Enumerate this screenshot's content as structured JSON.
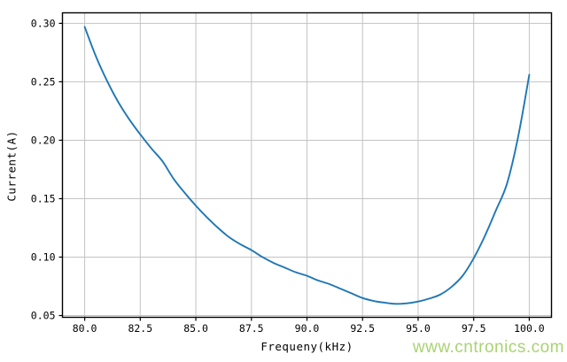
{
  "chart_data": {
    "type": "line",
    "title": "",
    "xlabel": "Frequeny(kHz)",
    "ylabel": "Current(A)",
    "x": [
      80,
      80.5,
      81,
      81.5,
      82,
      82.5,
      83,
      83.5,
      84,
      84.5,
      85,
      85.5,
      86,
      86.5,
      87,
      87.5,
      88,
      88.5,
      89,
      89.5,
      90,
      90.5,
      91,
      91.5,
      92,
      92.5,
      93,
      93.5,
      94,
      94.5,
      95,
      95.5,
      96,
      96.5,
      97,
      97.5,
      98,
      98.5,
      99,
      99.5,
      100
    ],
    "y": [
      0.297,
      0.272,
      0.251,
      0.233,
      0.218,
      0.205,
      0.193,
      0.182,
      0.167,
      0.155,
      0.144,
      0.134,
      0.125,
      0.117,
      0.111,
      0.106,
      0.1,
      0.095,
      0.091,
      0.087,
      0.084,
      0.08,
      0.077,
      0.073,
      0.069,
      0.065,
      0.0625,
      0.061,
      0.06,
      0.0605,
      0.062,
      0.0645,
      0.068,
      0.0745,
      0.084,
      0.099,
      0.118,
      0.14,
      0.163,
      0.203,
      0.256
    ],
    "xlim": [
      79.0,
      101.0
    ],
    "ylim": [
      0.0485,
      0.309
    ],
    "xticks": {
      "values": [
        80,
        82.5,
        85,
        87.5,
        90,
        92.5,
        95,
        97.5,
        100
      ],
      "labels": [
        "80.0",
        "82.5",
        "85.0",
        "87.5",
        "90.0",
        "92.5",
        "95.0",
        "97.5",
        "100.0"
      ]
    },
    "yticks": {
      "values": [
        0.05,
        0.1,
        0.15,
        0.2,
        0.25,
        0.3
      ],
      "labels": [
        "0.05",
        "0.10",
        "0.15",
        "0.20",
        "0.25",
        "0.30"
      ]
    },
    "grid": true,
    "legend": "none",
    "line_color": "#1f77b4",
    "grid_color": "#c3c3c3",
    "spine_color": "#000000",
    "start_point": {
      "x": 80.0,
      "y": 0.297
    },
    "min_point": {
      "x": 94.0,
      "y": 0.06
    },
    "end_point": {
      "x": 100.0,
      "y": 0.256
    }
  },
  "watermark": {
    "text": "www.cntronics.com",
    "color": "#a9d373"
  }
}
